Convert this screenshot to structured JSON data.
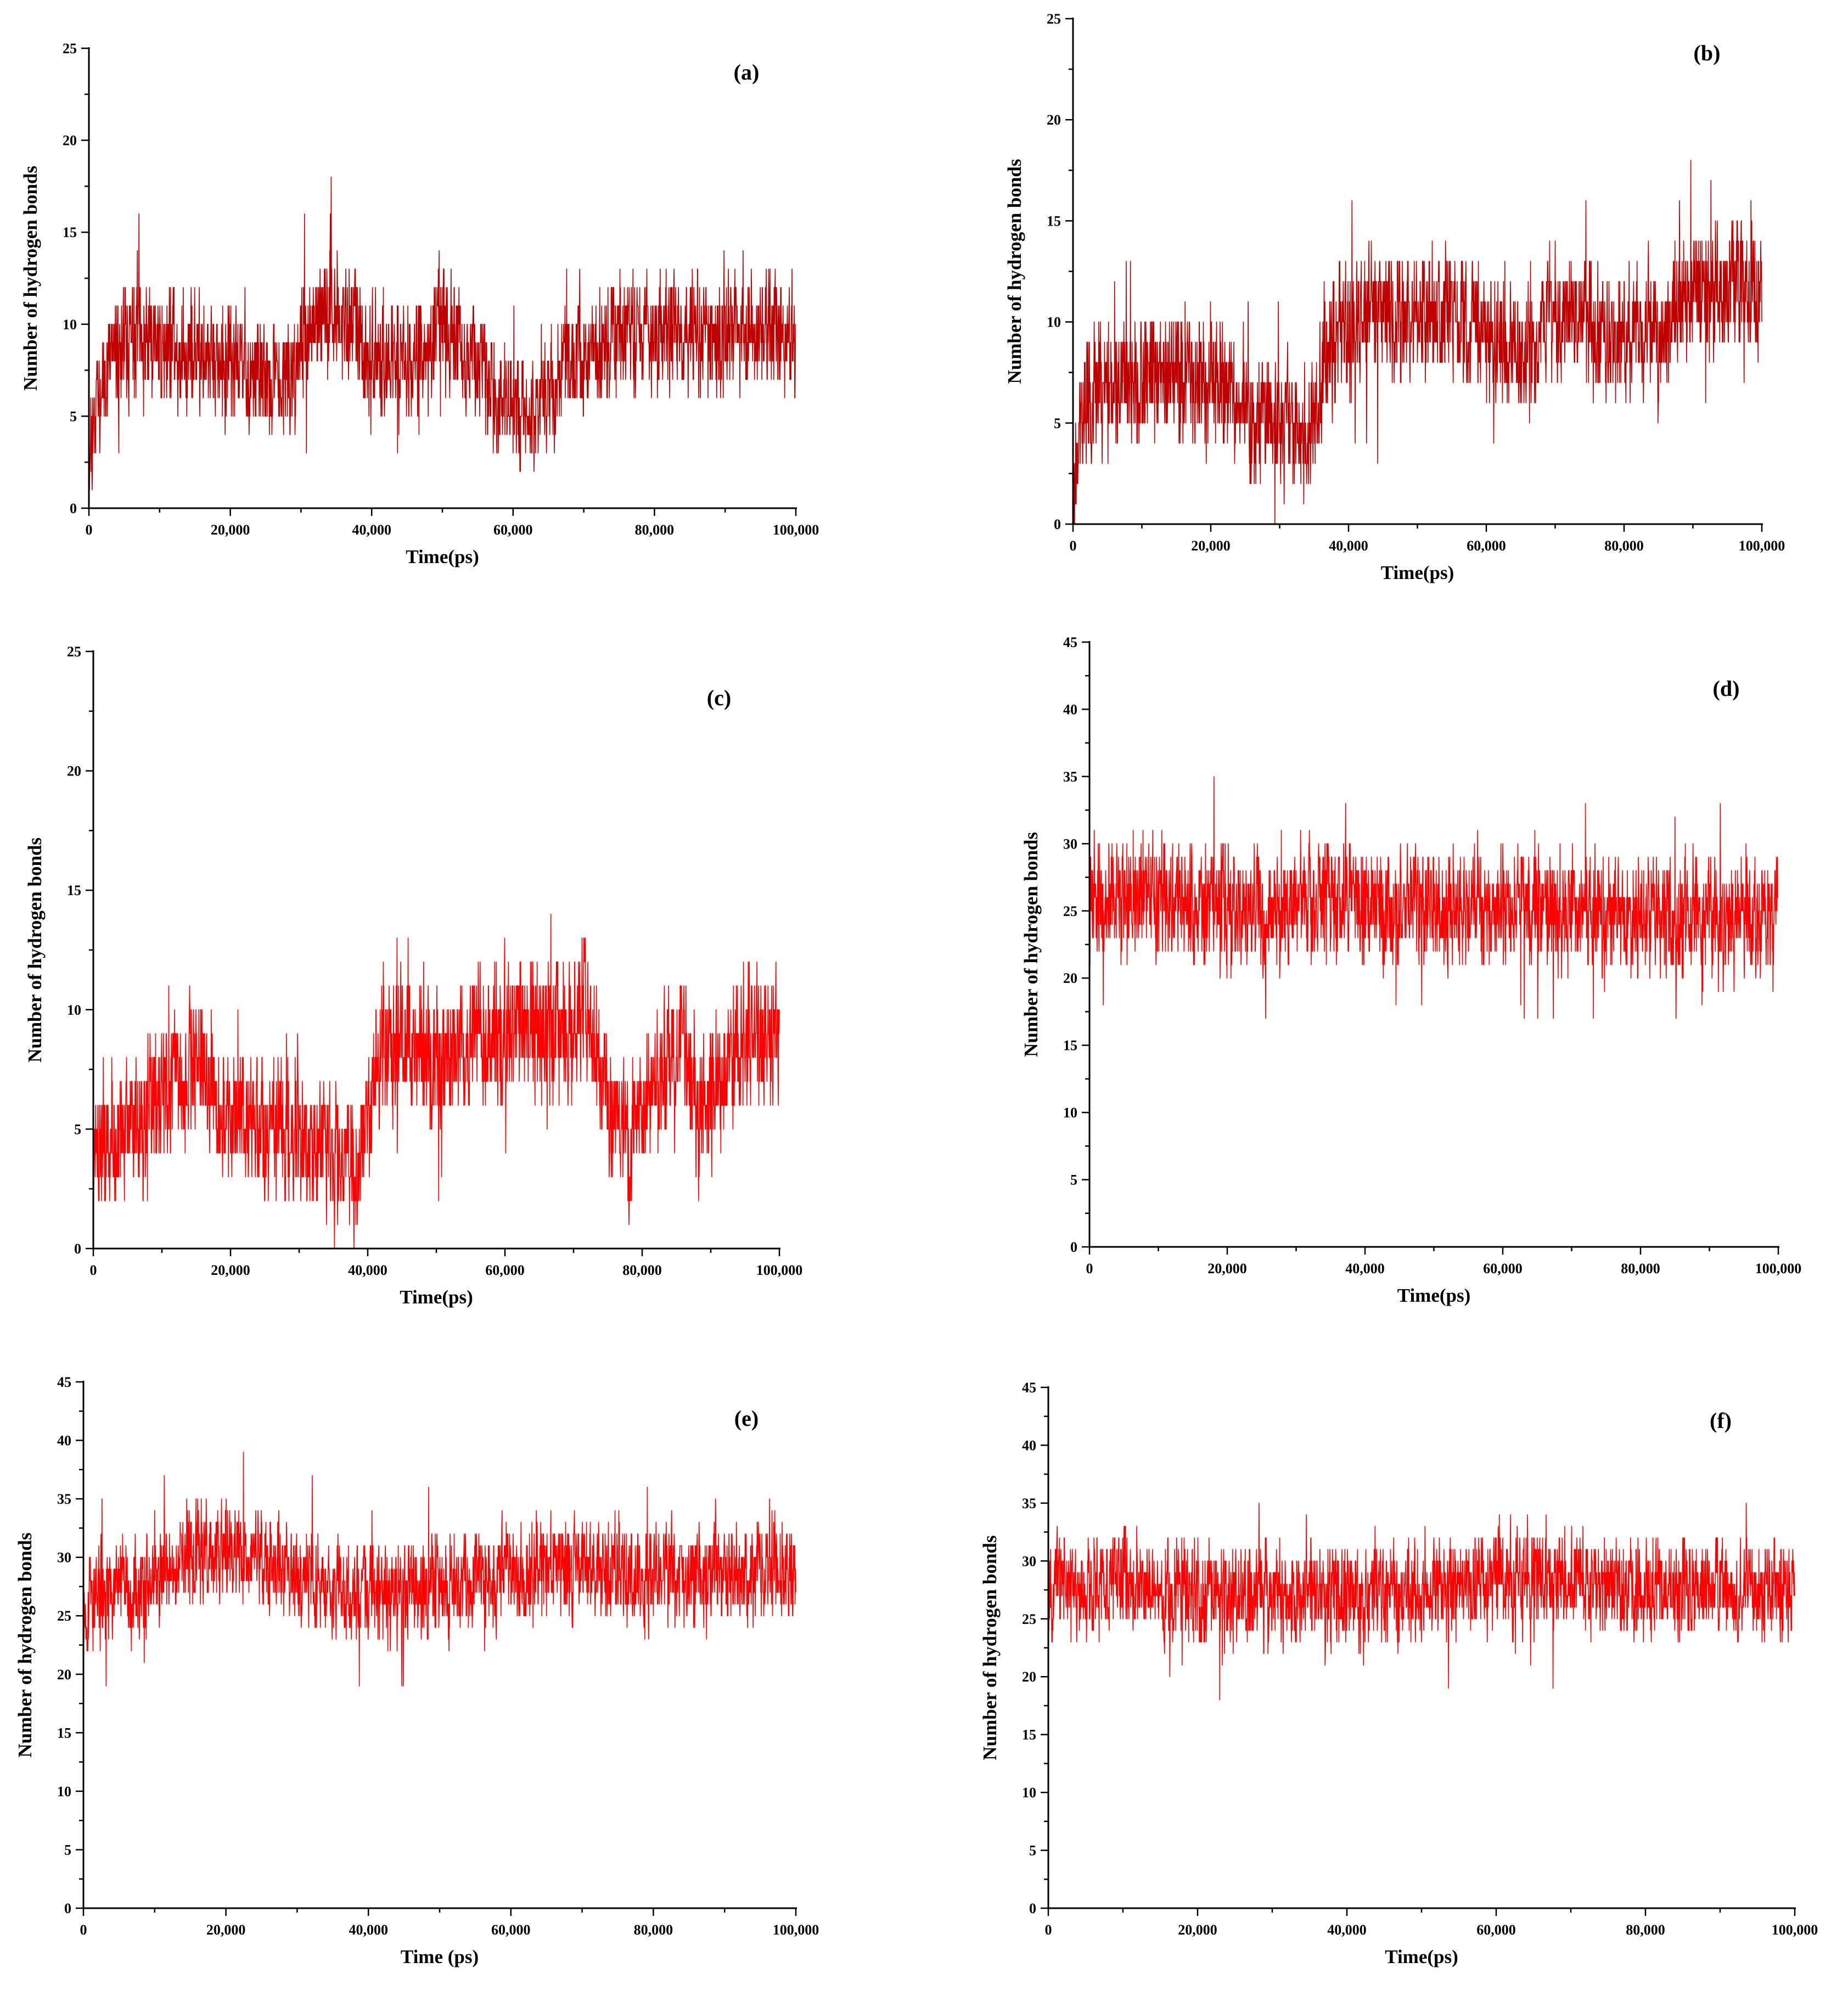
{
  "figure": {
    "series_colors": {
      "dark_red": "#c00000",
      "red": "#ff0000"
    }
  },
  "chart_data": [
    {
      "panel": "(a)",
      "type": "line",
      "xlabel": "Time(ps)",
      "ylabel": "Number of hydrogen bonds",
      "xlim": [
        0,
        100000
      ],
      "ylim": [
        0,
        25
      ],
      "xticks": [
        0,
        20000,
        40000,
        60000,
        80000,
        100000
      ],
      "xtick_labels": [
        "0",
        "20,000",
        "40,000",
        "60,000",
        "80,000",
        "100,000"
      ],
      "yticks": [
        0,
        5,
        10,
        15,
        20,
        25
      ],
      "ytick_labels": [
        "0",
        "5",
        "10",
        "15",
        "20",
        "25"
      ],
      "color": "#c00000",
      "noise": 2.2,
      "min": 0,
      "max": 20,
      "seed": 11,
      "series": [
        {
          "name": "Hydrogen bonds",
          "x": [
            0,
            1000,
            3000,
            5000,
            10000,
            15000,
            20000,
            25000,
            28000,
            31000,
            34000,
            37000,
            40000,
            45000,
            50000,
            55000,
            58000,
            60000,
            62000,
            65000,
            68000,
            70000,
            75000,
            80000,
            85000,
            90000,
            95000,
            100000
          ],
          "y": [
            3,
            6,
            8,
            9,
            9,
            8.5,
            8,
            7,
            6.5,
            10,
            11,
            10,
            8,
            8,
            10,
            8,
            6,
            5.5,
            5.5,
            6.5,
            7.5,
            8.5,
            9.5,
            9.5,
            9.5,
            9.5,
            10,
            9
          ]
        }
      ]
    },
    {
      "panel": "(b)",
      "type": "line",
      "xlabel": "Time(ps)",
      "ylabel": "Number of hydrogen bonds",
      "xlim": [
        0,
        100000
      ],
      "ylim": [
        0,
        25
      ],
      "xticks": [
        0,
        20000,
        40000,
        60000,
        80000,
        100000
      ],
      "xtick_labels": [
        "0",
        "20,000",
        "40,000",
        "60,000",
        "80,000",
        "100,000"
      ],
      "yticks": [
        0,
        5,
        10,
        15,
        20,
        25
      ],
      "ytick_labels": [
        "0",
        "5",
        "10",
        "15",
        "20",
        "25"
      ],
      "color": "#c00000",
      "noise": 2.2,
      "min": 0,
      "max": 19,
      "seed": 23,
      "series": [
        {
          "name": "Hydrogen bonds",
          "x": [
            0,
            1000,
            3000,
            8000,
            15000,
            20000,
            25000,
            30000,
            35000,
            37000,
            40000,
            45000,
            50000,
            55000,
            60000,
            65000,
            70000,
            75000,
            80000,
            85000,
            90000,
            95000,
            100000
          ],
          "y": [
            2,
            5,
            6.5,
            7,
            7.5,
            7,
            6,
            5,
            5,
            9,
            9.5,
            10.5,
            10.5,
            10,
            9.5,
            8.5,
            10.5,
            10,
            9,
            9.5,
            11.5,
            12,
            12
          ]
        }
      ]
    },
    {
      "panel": "(c)",
      "type": "line",
      "xlabel": "Time(ps)",
      "ylabel": "Number of hydrogen bonds",
      "xlim": [
        0,
        100000
      ],
      "ylim": [
        0,
        25
      ],
      "xticks": [
        0,
        20000,
        40000,
        60000,
        80000,
        100000
      ],
      "xtick_labels": [
        "0",
        "20,000",
        "40,000",
        "60,000",
        "80,000",
        "100,000"
      ],
      "yticks": [
        0,
        5,
        10,
        15,
        20,
        25
      ],
      "ytick_labels": [
        "0",
        "5",
        "10",
        "15",
        "20",
        "25"
      ],
      "color": "#ff0000",
      "noise": 2.0,
      "min": 0,
      "max": 18,
      "seed": 37,
      "series": [
        {
          "name": "Hydrogen bonds",
          "x": [
            0,
            3000,
            8000,
            12000,
            16000,
            20000,
            25000,
            30000,
            35000,
            39000,
            41000,
            45000,
            50000,
            55000,
            60000,
            65000,
            70000,
            72000,
            75000,
            78000,
            82000,
            86000,
            88000,
            92000,
            96000,
            100000
          ],
          "y": [
            4,
            4.5,
            5.5,
            7,
            8,
            5.5,
            5,
            5,
            4,
            3.5,
            8,
            8.5,
            8,
            8.5,
            9,
            9,
            9.5,
            10,
            6,
            4.5,
            7,
            9,
            5,
            7.5,
            9,
            9
          ]
        }
      ]
    },
    {
      "panel": "(d)",
      "type": "line",
      "xlabel": "Time(ps)",
      "ylabel": "Number of hydrogen bonds",
      "xlim": [
        0,
        100000
      ],
      "ylim": [
        0,
        45
      ],
      "xticks": [
        0,
        20000,
        40000,
        60000,
        80000,
        100000
      ],
      "xtick_labels": [
        "0",
        "20,000",
        "40,000",
        "60,000",
        "80,000",
        "100,000"
      ],
      "yticks": [
        0,
        5,
        10,
        15,
        20,
        25,
        30,
        35,
        40,
        45
      ],
      "ytick_labels": [
        "0",
        "5",
        "10",
        "15",
        "20",
        "25",
        "30",
        "35",
        "40",
        "45"
      ],
      "color": "#ff0000",
      "noise": 3.0,
      "min": 16,
      "max": 35,
      "seed": 41,
      "series": [
        {
          "name": "Hydrogen bonds",
          "x": [
            0,
            5000,
            15000,
            25000,
            35000,
            40000,
            50000,
            60000,
            70000,
            80000,
            90000,
            100000
          ],
          "y": [
            26,
            26,
            25.5,
            25,
            26,
            26,
            25,
            25.5,
            25,
            24.5,
            24.5,
            24.5
          ]
        }
      ]
    },
    {
      "panel": "(e)",
      "type": "line",
      "xlabel": "Time (ps)",
      "ylabel": "Number of hydrogen bonds",
      "xlim": [
        0,
        100000
      ],
      "ylim": [
        0,
        45
      ],
      "xticks": [
        0,
        20000,
        40000,
        60000,
        80000,
        100000
      ],
      "xtick_labels": [
        "0",
        "20,000",
        "40,000",
        "60,000",
        "80,000",
        "100,000"
      ],
      "yticks": [
        0,
        5,
        10,
        15,
        20,
        25,
        30,
        35,
        40,
        45
      ],
      "ytick_labels": [
        "0",
        "5",
        "10",
        "15",
        "20",
        "25",
        "30",
        "35",
        "40",
        "45"
      ],
      "color": "#ff0000",
      "noise": 3.0,
      "min": 18,
      "max": 40,
      "seed": 53,
      "series": [
        {
          "name": "Hydrogen bonds",
          "x": [
            0,
            5000,
            10000,
            15000,
            20000,
            25000,
            30000,
            35000,
            40000,
            45000,
            50000,
            60000,
            70000,
            80000,
            90000,
            100000
          ],
          "y": [
            26,
            27,
            28,
            30,
            30.5,
            30.5,
            28.5,
            27.5,
            27,
            27,
            28,
            28.5,
            29,
            28.5,
            28.5,
            29
          ]
        }
      ]
    },
    {
      "panel": "(f)",
      "type": "line",
      "xlabel": "Time(ps)",
      "ylabel": "Number of hydrogen bonds",
      "xlim": [
        0,
        100000
      ],
      "ylim": [
        0,
        45
      ],
      "xticks": [
        0,
        20000,
        40000,
        60000,
        80000,
        100000
      ],
      "xtick_labels": [
        "0",
        "20,000",
        "40,000",
        "60,000",
        "80,000",
        "100,000"
      ],
      "yticks": [
        0,
        5,
        10,
        15,
        20,
        25,
        30,
        35,
        40,
        45
      ],
      "ytick_labels": [
        "0",
        "5",
        "10",
        "15",
        "20",
        "25",
        "30",
        "35",
        "40",
        "45"
      ],
      "color": "#ff0000",
      "noise": 3.0,
      "min": 18,
      "max": 39,
      "seed": 67,
      "series": [
        {
          "name": "Hydrogen bonds",
          "x": [
            0,
            10000,
            20000,
            30000,
            40000,
            50000,
            60000,
            70000,
            80000,
            90000,
            100000
          ],
          "y": [
            28,
            28,
            27.5,
            27,
            27,
            27.5,
            28.5,
            28.5,
            27.5,
            27.5,
            27.5
          ]
        }
      ]
    }
  ]
}
